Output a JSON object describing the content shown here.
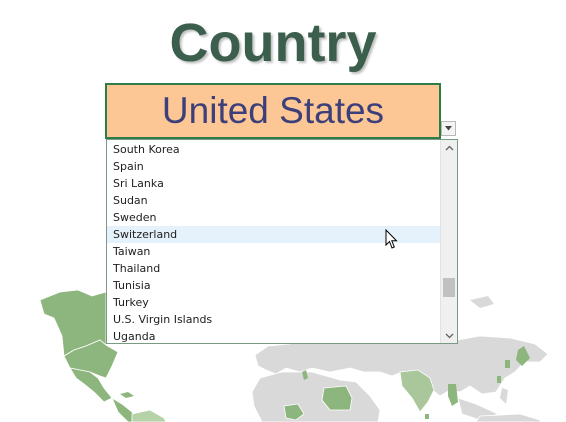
{
  "header": {
    "title": "Country"
  },
  "selector": {
    "selected_value": "United States",
    "cell_fill": "#fcc794",
    "cell_border": "#2e7d46",
    "text_color": "#3d3f7b",
    "dropdown_icon": "chevron-down-icon"
  },
  "dropdown": {
    "options": [
      "South Korea",
      "Spain",
      "Sri Lanka",
      "Sudan",
      "Sweden",
      "Switzerland",
      "Taiwan",
      "Thailand",
      "Tunisia",
      "Turkey",
      "U.S. Virgin Islands",
      "Uganda"
    ],
    "hovered_option": "Switzerland",
    "hover_color": "#e5f1fb",
    "scroll_position": 0.8
  },
  "map": {
    "highlight_color": "#8db67e",
    "base_color": "#d9d9d9"
  },
  "cursor": {
    "icon": "arrow-cursor-icon"
  }
}
